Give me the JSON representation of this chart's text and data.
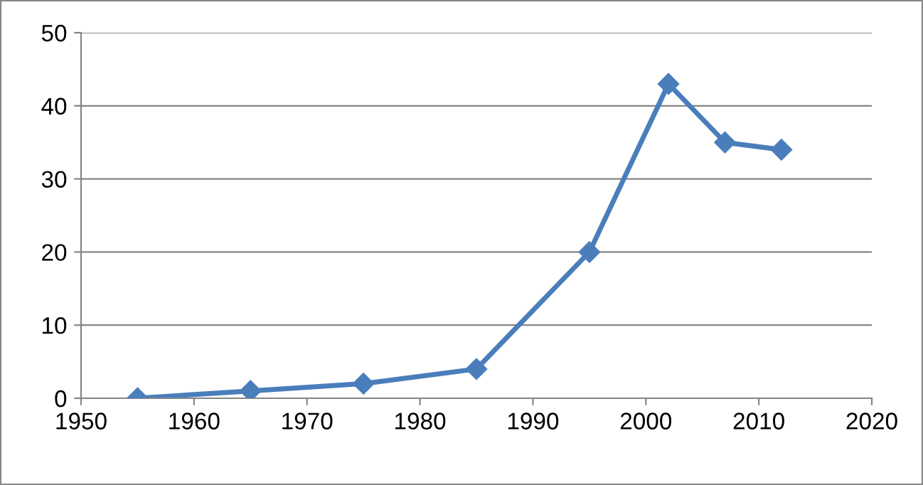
{
  "chart_data": {
    "type": "line",
    "x": [
      1955,
      1965,
      1975,
      1985,
      1995,
      2002,
      2007,
      2012
    ],
    "series": [
      {
        "color": "#4a7ebb",
        "values": [
          0,
          1,
          2,
          4,
          20,
          43,
          35,
          34
        ]
      }
    ],
    "xlim": [
      1950,
      2020
    ],
    "xticks": [
      1950,
      1960,
      1970,
      1980,
      1990,
      2000,
      2010,
      2020
    ],
    "ylim": [
      0,
      50
    ],
    "yticks": [
      0,
      10,
      20,
      30,
      40,
      50
    ],
    "grid": "y",
    "marker": "diamond",
    "line_style": "solid"
  }
}
